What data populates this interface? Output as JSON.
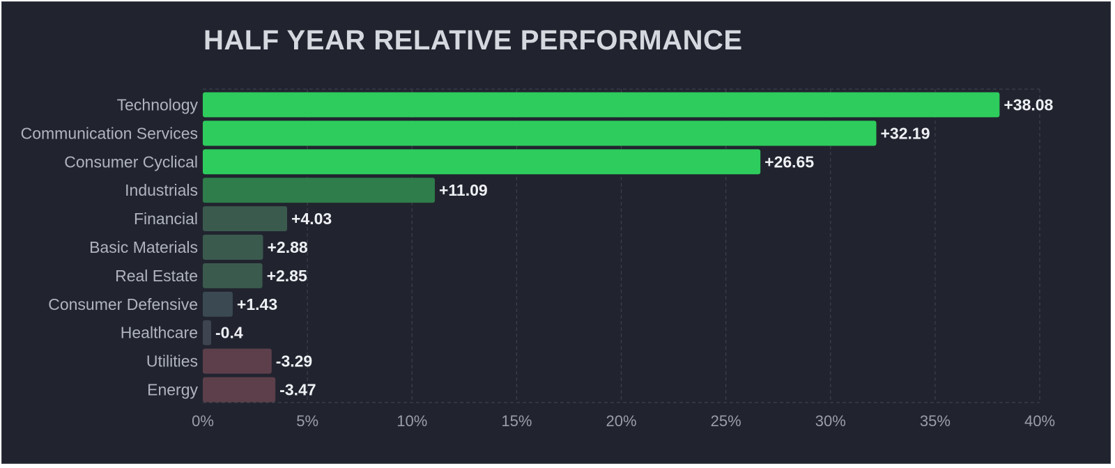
{
  "chart_data": {
    "type": "bar",
    "orientation": "horizontal",
    "title": "HALF YEAR RELATIVE PERFORMANCE",
    "categories": [
      "Technology",
      "Communication Services",
      "Consumer Cyclical",
      "Industrials",
      "Financial",
      "Basic Materials",
      "Real Estate",
      "Consumer Defensive",
      "Healthcare",
      "Utilities",
      "Energy"
    ],
    "values": [
      38.08,
      32.19,
      26.65,
      11.09,
      4.03,
      2.88,
      2.85,
      1.43,
      -0.4,
      -3.29,
      -3.47
    ],
    "value_labels": [
      "+38.08",
      "+32.19",
      "+26.65",
      "+11.09",
      "+4.03",
      "+2.88",
      "+2.85",
      "+1.43",
      "-0.4",
      "-3.29",
      "-3.47"
    ],
    "bar_colors": [
      "#2ecc5c",
      "#2ecc5c",
      "#2ecc5c",
      "#2e7d4a",
      "#3b5a4e",
      "#3b5a4e",
      "#3b5a4e",
      "#3b4a52",
      "#3e4550",
      "#5c3f4a",
      "#5c3f4a"
    ],
    "x_ticks": [
      0,
      5,
      10,
      15,
      20,
      25,
      30,
      35,
      40
    ],
    "x_tick_labels": [
      "0%",
      "5%",
      "10%",
      "15%",
      "20%",
      "25%",
      "30%",
      "35%",
      "40%"
    ],
    "xlim": [
      0,
      40
    ],
    "bar_length": "absolute value",
    "grid": "vertical dashed",
    "xlabel": "",
    "ylabel": ""
  }
}
